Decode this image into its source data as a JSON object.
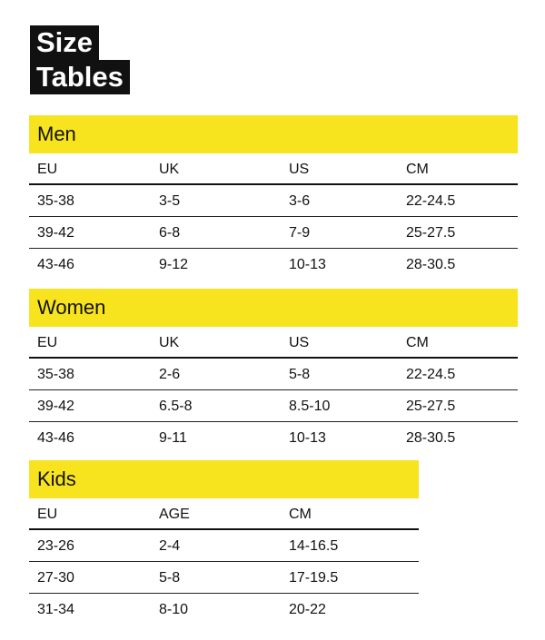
{
  "title": {
    "line1": "Size",
    "line2": "Tables"
  },
  "sections": [
    {
      "name": "Men",
      "columns": [
        "EU",
        "UK",
        "US",
        "CM"
      ],
      "rows": [
        [
          "35-38",
          "3-5",
          "3-6",
          "22-24.5"
        ],
        [
          "39-42",
          "6-8",
          "7-9",
          "25-27.5"
        ],
        [
          "43-46",
          "9-12",
          "10-13",
          "28-30.5"
        ]
      ]
    },
    {
      "name": "Women",
      "columns": [
        "EU",
        "UK",
        "US",
        "CM"
      ],
      "rows": [
        [
          "35-38",
          "2-6",
          "5-8",
          "22-24.5"
        ],
        [
          "39-42",
          "6.5-8",
          "8.5-10",
          "25-27.5"
        ],
        [
          "43-46",
          "9-11",
          "10-13",
          "28-30.5"
        ]
      ]
    },
    {
      "name": "Kids",
      "columns": [
        "EU",
        "AGE",
        "CM"
      ],
      "rows": [
        [
          "23-26",
          "2-4",
          "14-16.5"
        ],
        [
          "27-30",
          "5-8",
          "17-19.5"
        ],
        [
          "31-34",
          "8-10",
          "20-22"
        ]
      ]
    }
  ]
}
